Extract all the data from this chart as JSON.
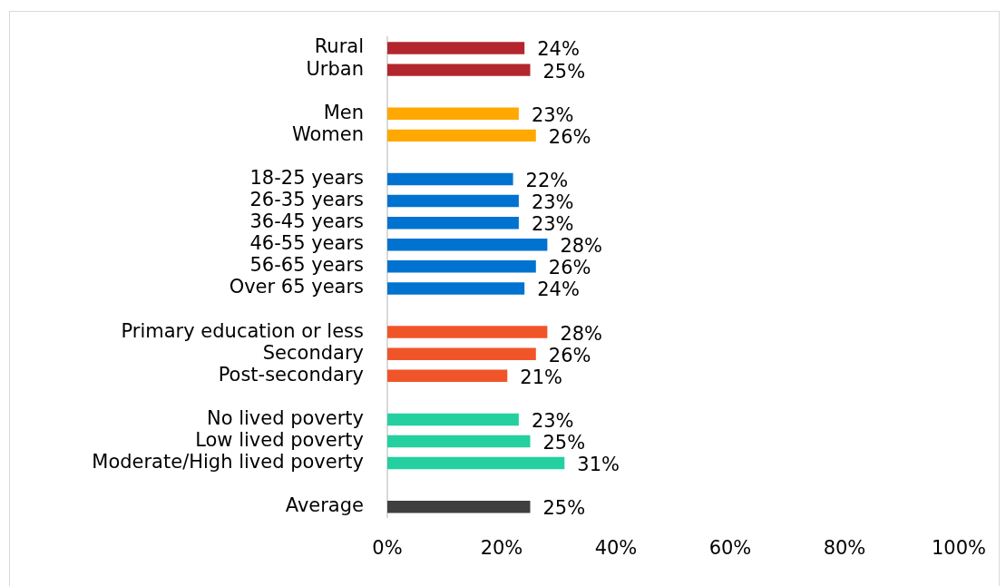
{
  "chart_data": {
    "type": "bar",
    "orientation": "horizontal",
    "categories": [
      "Rural",
      "Urban",
      null,
      "Men",
      "Women",
      null,
      "18-25 years",
      "26-35 years",
      "36-45 years",
      "46-55 years",
      "56-65 years",
      "Over 65 years",
      null,
      "Primary education or less",
      "Secondary",
      "Post-secondary",
      null,
      "No lived poverty",
      "Low lived poverty",
      "Moderate/High lived poverty",
      null,
      "Average"
    ],
    "values": [
      24,
      25,
      null,
      23,
      26,
      null,
      22,
      23,
      23,
      28,
      26,
      24,
      null,
      28,
      26,
      21,
      null,
      23,
      25,
      31,
      null,
      25
    ],
    "colors": [
      "#b3262d",
      "#b3262d",
      null,
      "#ffa800",
      "#ffa800",
      null,
      "#0073d1",
      "#0073d1",
      "#0073d1",
      "#0073d1",
      "#0073d1",
      "#0073d1",
      null,
      "#f05529",
      "#f05529",
      "#f05529",
      null,
      "#24d09f",
      "#24d09f",
      "#24d09f",
      null,
      "#3f3f3f"
    ],
    "value_labels": [
      "24%",
      "25%",
      null,
      "23%",
      "26%",
      null,
      "22%",
      "23%",
      "23%",
      "28%",
      "26%",
      "24%",
      null,
      "28%",
      "26%",
      "21%",
      null,
      "23%",
      "25%",
      "31%",
      null,
      "25%"
    ],
    "xlim": [
      0,
      100
    ],
    "xticks": [
      {
        "value": 0,
        "label": "0%"
      },
      {
        "value": 20,
        "label": "20%"
      },
      {
        "value": 40,
        "label": "40%"
      },
      {
        "value": 60,
        "label": "60%"
      },
      {
        "value": 80,
        "label": "80%"
      },
      {
        "value": 100,
        "label": "100%"
      }
    ],
    "grid": false
  }
}
